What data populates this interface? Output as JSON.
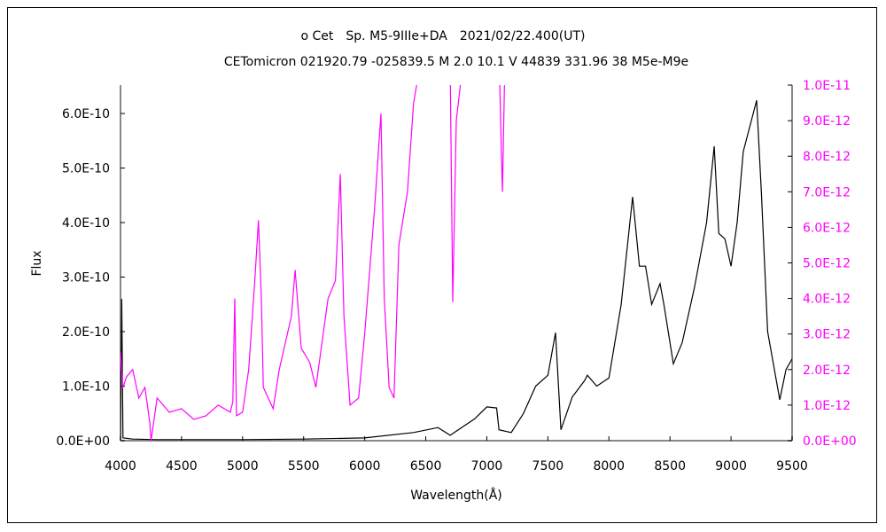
{
  "chart_data": {
    "type": "line",
    "title": "ο Cet　Sp. M5-9IIIe+DA　2021/02/22.400(UT)",
    "subtitle": "CETomicron 021920.79 -025839.5 M 2.0 10.1 V 44839 331.96 38 M5e-M9e",
    "xlabel": "Wavelength(Å)",
    "ylabel": "Flux",
    "xlim": [
      4000,
      9500
    ],
    "ylim_left": [
      0,
      6.5e-10
    ],
    "ylim_right": [
      0,
      1e-11
    ],
    "x_ticks": [
      "4000",
      "4500",
      "5000",
      "5500",
      "6000",
      "6500",
      "7000",
      "7500",
      "8000",
      "8500",
      "9000",
      "9500"
    ],
    "y_left_ticks": [
      "0.0E+00",
      "1.0E-10",
      "2.0E-10",
      "3.0E-10",
      "4.0E-10",
      "5.0E-10",
      "6.0E-10"
    ],
    "y_right_ticks": [
      "0.0E+00",
      "1.0E-12",
      "2.0E-12",
      "3.0E-12",
      "4.0E-12",
      "5.0E-12",
      "6.0E-12",
      "7.0E-12",
      "8.0E-12",
      "9.0E-12",
      "1.0E-11"
    ],
    "grid": false,
    "colors": {
      "left_series": "#000000",
      "right_series": "#ff00ff",
      "right_axis": "#ff00ff"
    },
    "series": [
      {
        "name": "flux-left-axis",
        "axis": "left",
        "unit_scale": 1e-10,
        "color": "#000000",
        "x": [
          4000,
          4010,
          4020,
          4100,
          4300,
          5000,
          5500,
          6000,
          6400,
          6600,
          6700,
          6900,
          7000,
          7080,
          7100,
          7200,
          7300,
          7400,
          7500,
          7563,
          7607,
          7700,
          7800,
          7824,
          7900,
          8000,
          8100,
          8194,
          8250,
          8300,
          8350,
          8419,
          8450,
          8528,
          8600,
          8700,
          8800,
          8862,
          8900,
          8950,
          9000,
          9050,
          9100,
          9210,
          9250,
          9300,
          9399,
          9450,
          9500
        ],
        "y": [
          0.05,
          2.6,
          0.05,
          0.03,
          0.02,
          0.02,
          0.03,
          0.05,
          0.15,
          0.24,
          0.1,
          0.4,
          0.62,
          0.6,
          0.2,
          0.15,
          0.5,
          1.0,
          1.2,
          1.98,
          0.2,
          0.8,
          1.1,
          1.2,
          1.0,
          1.15,
          2.5,
          4.47,
          3.2,
          3.2,
          2.5,
          2.88,
          2.5,
          1.41,
          1.8,
          2.8,
          4.0,
          5.4,
          3.8,
          3.7,
          3.2,
          4.0,
          5.3,
          6.24,
          4.5,
          2.0,
          0.75,
          1.3,
          1.5
        ]
      },
      {
        "name": "flux-right-axis",
        "axis": "right",
        "unit_scale": 1e-12,
        "color": "#ff00ff",
        "x": [
          4000,
          4020,
          4050,
          4100,
          4150,
          4200,
          4240,
          4250,
          4300,
          4400,
          4500,
          4600,
          4700,
          4800,
          4900,
          4920,
          4936,
          4950,
          5000,
          5050,
          5100,
          5130,
          5154,
          5170,
          5250,
          5300,
          5400,
          5430,
          5480,
          5550,
          5600,
          5700,
          5760,
          5800,
          5830,
          5880,
          5950,
          6000,
          6080,
          6133,
          6160,
          6200,
          6240,
          6280,
          6350,
          6400,
          6450,
          6600,
          6680,
          6700,
          6721,
          6750,
          6800,
          6850,
          7100,
          7120,
          7128,
          7150
        ],
        "y": [
          2.5,
          1.5,
          1.8,
          2.0,
          1.2,
          1.5,
          0.5,
          0.0,
          1.2,
          0.8,
          0.9,
          0.6,
          0.7,
          1.0,
          0.8,
          1.1,
          4.0,
          0.7,
          0.8,
          2.0,
          4.5,
          6.2,
          4.0,
          1.5,
          0.9,
          2.0,
          3.5,
          4.8,
          2.6,
          2.2,
          1.5,
          4.0,
          4.5,
          7.5,
          3.5,
          1.0,
          1.2,
          3.0,
          6.5,
          9.2,
          4.0,
          1.5,
          1.2,
          5.5,
          7.0,
          9.5,
          10.5,
          11,
          11,
          10.5,
          3.9,
          9.0,
          10.5,
          11,
          11,
          8.0,
          7.0,
          11
        ]
      }
    ]
  }
}
